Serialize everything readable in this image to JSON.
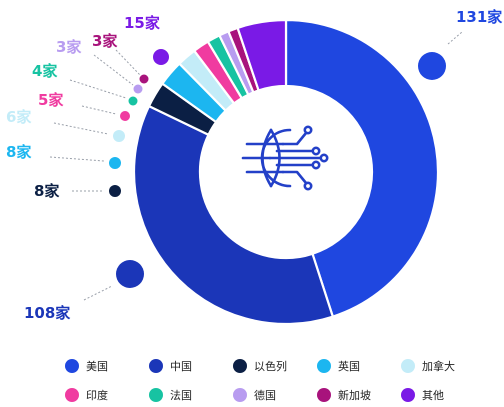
{
  "chart_data": {
    "type": "pie",
    "variant": "donut",
    "center_icon": "globe-network-icon",
    "slices": [
      {
        "label": "美国",
        "value": 131,
        "value_label": "131家",
        "color": "#1f47e0"
      },
      {
        "label": "中国",
        "value": 108,
        "value_label": "108家",
        "color": "#1b36b8"
      },
      {
        "label": "以色列",
        "value": 8,
        "value_label": "8家",
        "color": "#0b1f44"
      },
      {
        "label": "英国",
        "value": 8,
        "value_label": "8家",
        "color": "#1cb6f0"
      },
      {
        "label": "加拿大",
        "value": 6,
        "value_label": "6家",
        "color": "#c3ecf8"
      },
      {
        "label": "印度",
        "value": 5,
        "value_label": "5家",
        "color": "#f03ba0"
      },
      {
        "label": "法国",
        "value": 4,
        "value_label": "4家",
        "color": "#17c3a2"
      },
      {
        "label": "德国",
        "value": 3,
        "value_label": "3家",
        "color": "#b89cf0"
      },
      {
        "label": "新加坡",
        "value": 3,
        "value_label": "3家",
        "color": "#a8137c"
      },
      {
        "label": "其他",
        "value": 15,
        "value_label": "15家",
        "color": "#7a1ae6"
      }
    ],
    "legend": {
      "position": "bottom",
      "columns": 5
    }
  }
}
